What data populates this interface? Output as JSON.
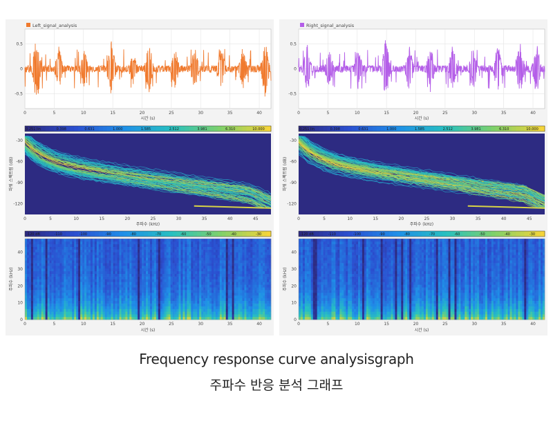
{
  "caption": {
    "english": "Frequency response curve analysisgraph",
    "korean": "주파수 반응 분석 그래프"
  },
  "colors": {
    "left_signal": "#f07a2e",
    "right_signal": "#b45ee8",
    "spectrum_bg": "#2d2b82",
    "colormap": [
      "#2d2b82",
      "#2b4fd0",
      "#1f8fe8",
      "#28c0c0",
      "#7fd16a",
      "#f5d43a"
    ]
  },
  "chart_data": [
    {
      "id": "left-waveform",
      "type": "line",
      "legend": "Left_signal_analysis",
      "xlabel": "시간 (s)",
      "xlim": [
        0,
        42
      ],
      "ylim": [
        -0.8,
        0.8
      ],
      "x_ticks": [
        0,
        5,
        10,
        15,
        20,
        25,
        30,
        35,
        40
      ],
      "y_ticks": [
        "0.5",
        "0",
        "-0.5"
      ],
      "y_tick_values": [
        0.5,
        0,
        -0.5
      ],
      "seed": 7,
      "bursts": [
        [
          2.0,
          0.75
        ],
        [
          5.8,
          0.45
        ],
        [
          10.1,
          0.4
        ],
        [
          14.8,
          0.6
        ],
        [
          18.5,
          0.35
        ],
        [
          21.2,
          0.55
        ],
        [
          25.6,
          0.45
        ],
        [
          29.0,
          0.45
        ],
        [
          33.5,
          0.5
        ],
        [
          37.2,
          0.45
        ],
        [
          41.0,
          0.6
        ]
      ]
    },
    {
      "id": "right-waveform",
      "type": "line",
      "legend": "Right_signal_analysis",
      "xlabel": "시간 (s)",
      "xlim": [
        0,
        42
      ],
      "ylim": [
        -0.8,
        0.8
      ],
      "x_ticks": [
        0,
        5,
        10,
        15,
        20,
        25,
        30,
        35,
        40
      ],
      "y_ticks": [
        "0.5",
        "0",
        "-0.5"
      ],
      "y_tick_values": [
        0.5,
        0,
        -0.5
      ],
      "seed": 13,
      "bursts": [
        [
          1.5,
          0.5
        ],
        [
          5.2,
          0.45
        ],
        [
          10.2,
          0.45
        ],
        [
          14.9,
          0.65
        ],
        [
          18.9,
          0.5
        ],
        [
          22.5,
          0.5
        ],
        [
          26.3,
          0.5
        ],
        [
          29.8,
          0.45
        ],
        [
          34.0,
          0.5
        ],
        [
          37.8,
          0.6
        ],
        [
          40.6,
          0.55
        ]
      ]
    },
    {
      "id": "left-spectrum",
      "type": "heatmap",
      "ylabel": "파워 스펙트럼 (dB)",
      "xlabel": "주파수 (kHz)",
      "xlim": [
        0,
        48
      ],
      "ylim": [
        -135,
        -20
      ],
      "x_ticks": [
        0,
        5,
        10,
        15,
        20,
        25,
        30,
        35,
        40,
        45
      ],
      "y_ticks": [
        -30,
        -60,
        -90,
        -120
      ],
      "colorbar_ticks": [
        "0.251 lin",
        "0.398",
        "0.631",
        "1.000",
        "1.585",
        "2.512",
        "3.981",
        "6.310",
        "10.000"
      ],
      "seed": 21
    },
    {
      "id": "right-spectrum",
      "type": "heatmap",
      "ylabel": "파워 스펙트럼 (dB)",
      "xlabel": "주파수 (kHz)",
      "xlim": [
        0,
        48
      ],
      "ylim": [
        -135,
        -20
      ],
      "x_ticks": [
        0,
        5,
        10,
        15,
        20,
        25,
        30,
        35,
        40,
        45
      ],
      "y_ticks": [
        -30,
        -60,
        -90,
        -120
      ],
      "colorbar_ticks": [
        "0.251 lin",
        "0.398",
        "0.631",
        "1.000",
        "1.585",
        "2.512",
        "3.981",
        "6.310",
        "10.000"
      ],
      "seed": 33
    },
    {
      "id": "left-spectrogram",
      "type": "heatmap",
      "ylabel": "주파수 (kHz)",
      "xlabel": "시간 (s)",
      "xlim": [
        0,
        42
      ],
      "ylim": [
        0,
        48
      ],
      "x_ticks": [
        0,
        5,
        10,
        15,
        20,
        25,
        30,
        35,
        40
      ],
      "y_ticks": [
        0,
        10,
        20,
        30,
        40
      ],
      "colorbar_ticks": [
        "-120 dB",
        "-110",
        "-100",
        "-90",
        "-80",
        "-70",
        "-60",
        "-50",
        "-40",
        "-30"
      ],
      "seed": 41
    },
    {
      "id": "right-spectrogram",
      "type": "heatmap",
      "ylabel": "주파수 (kHz)",
      "xlabel": "시간 (s)",
      "xlim": [
        0,
        42
      ],
      "ylim": [
        0,
        48
      ],
      "x_ticks": [
        0,
        5,
        10,
        15,
        20,
        25,
        30,
        35,
        40
      ],
      "y_ticks": [
        0,
        10,
        20,
        30,
        40
      ],
      "colorbar_ticks": [
        "-120 dB",
        "-110",
        "-100",
        "-90",
        "-80",
        "-70",
        "-60",
        "-50",
        "-40",
        "-30"
      ],
      "seed": 57
    }
  ]
}
